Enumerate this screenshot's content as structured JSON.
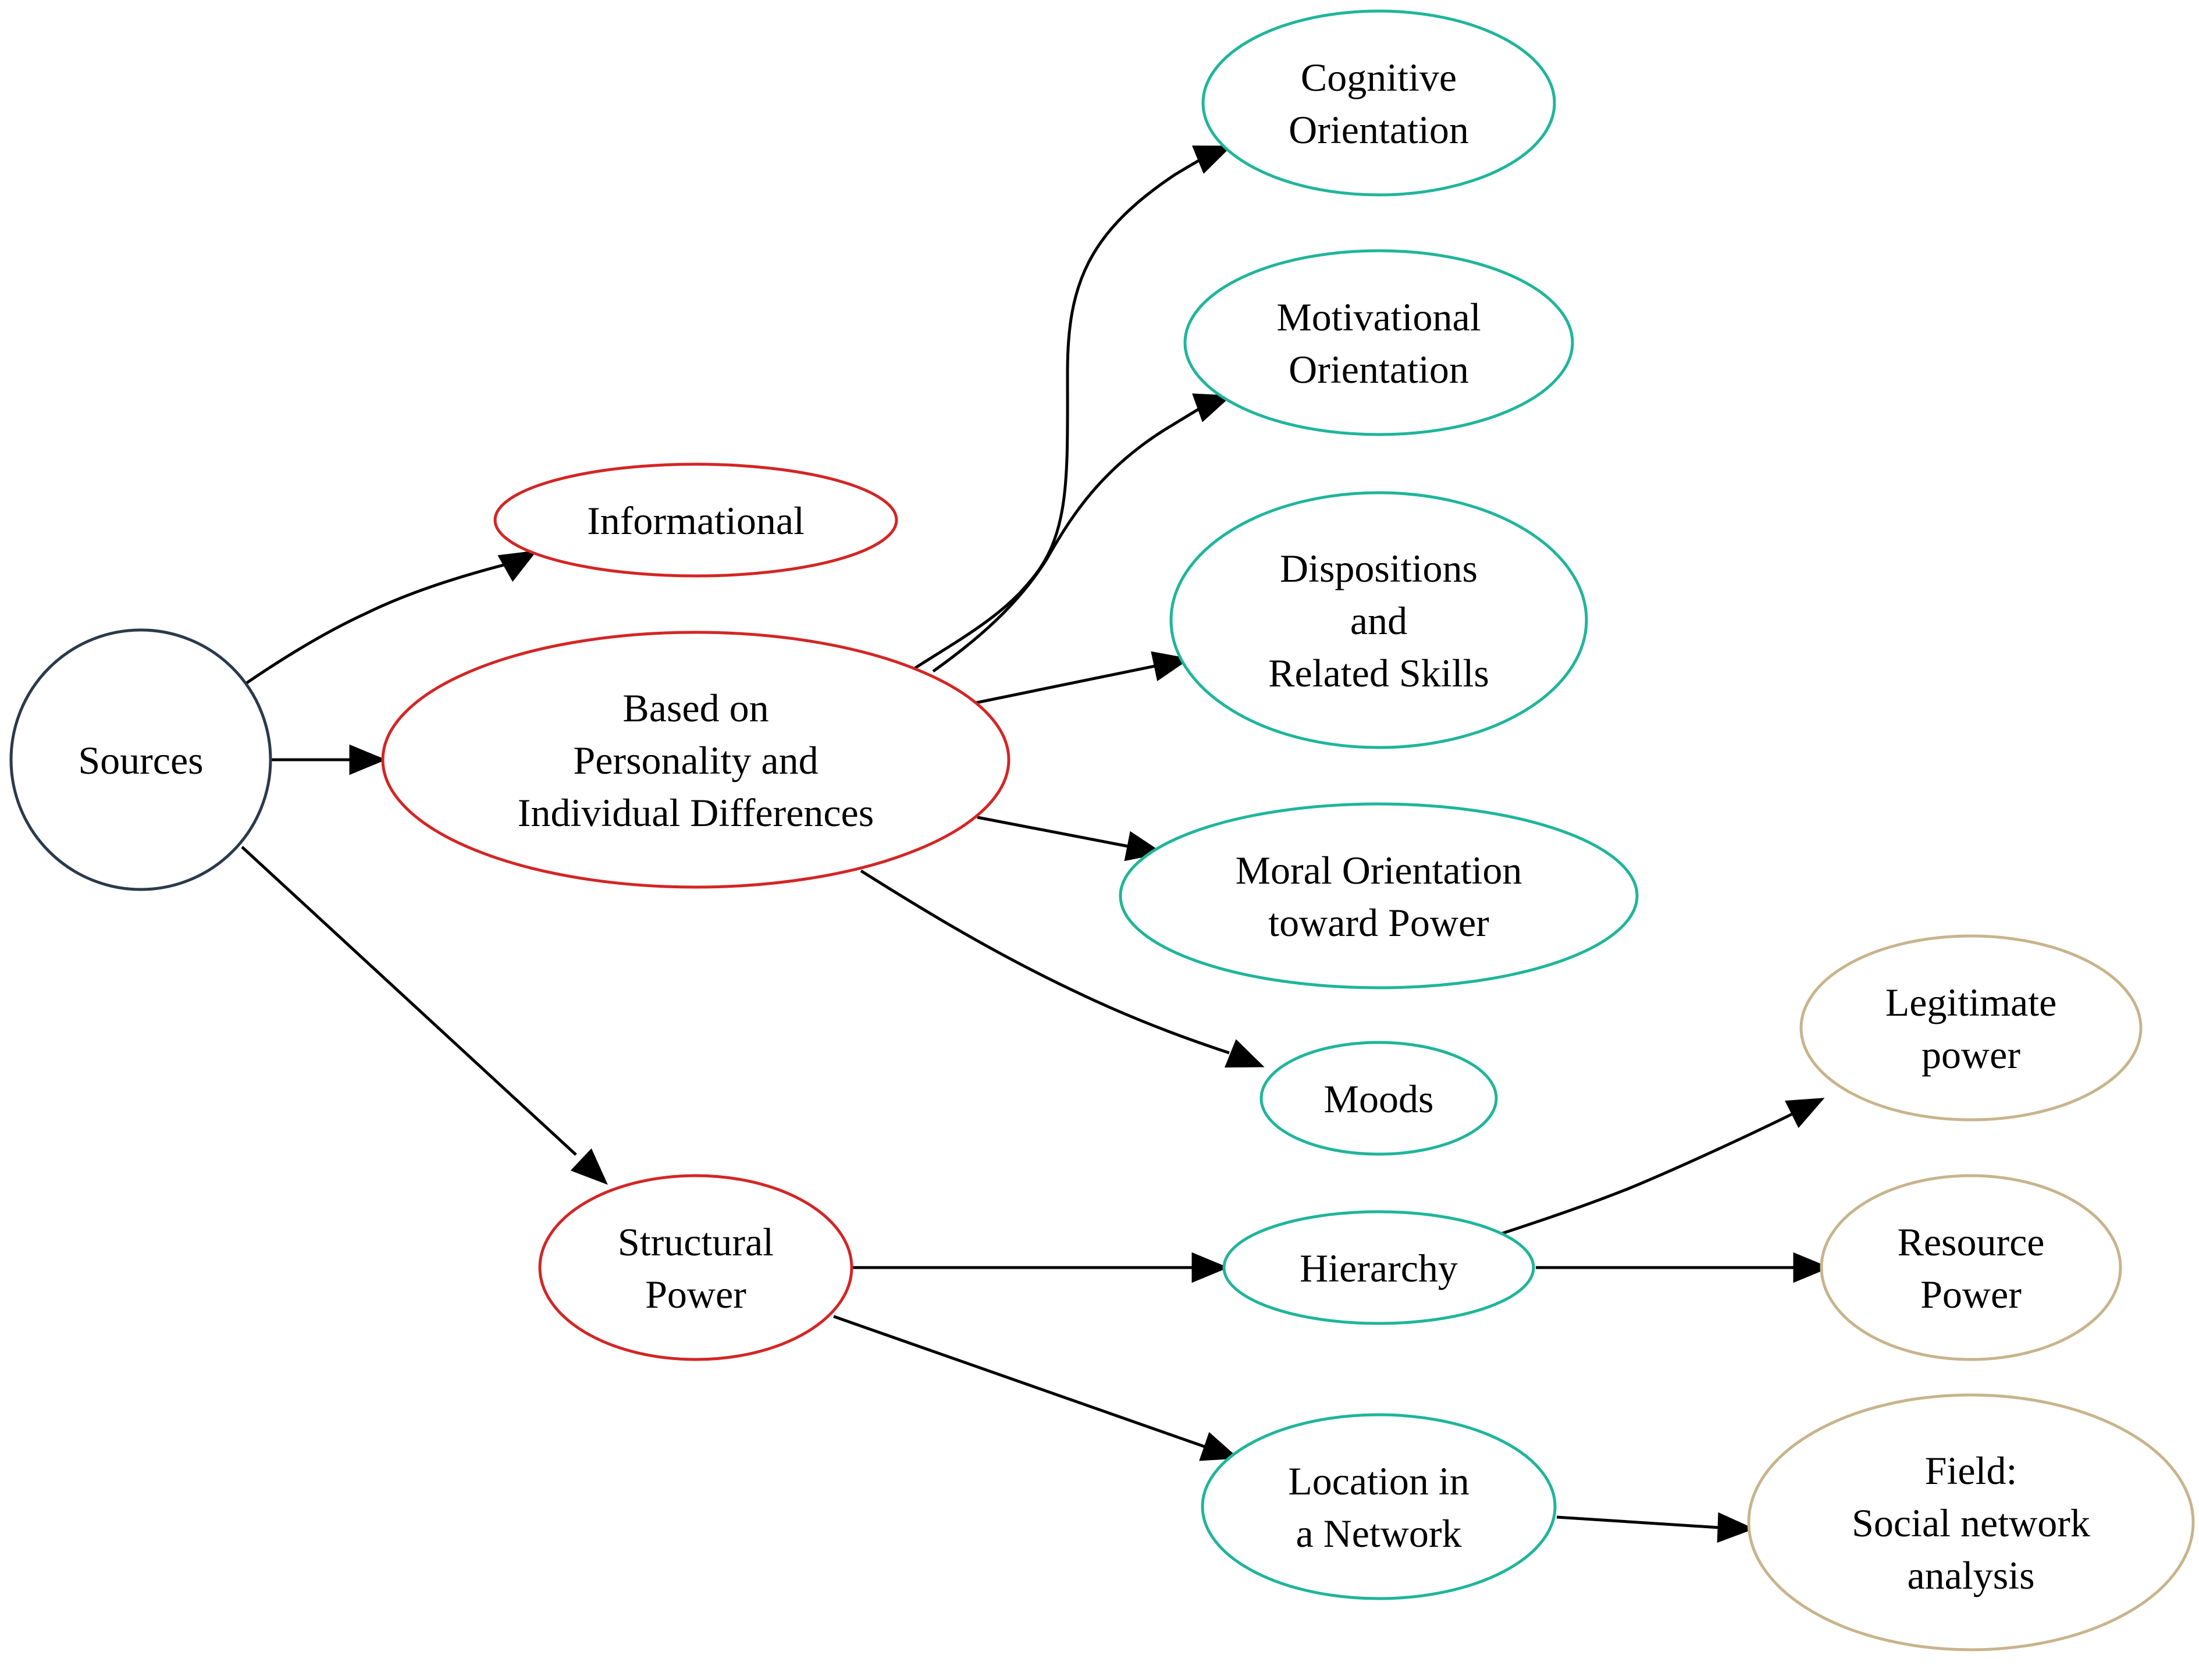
{
  "colors": {
    "root": "#2a3a4c",
    "category": "#d42525",
    "factor": "#1fb59b",
    "outcome": "#c8b48c",
    "edge": "#000000"
  },
  "nodes": {
    "sources": {
      "label": "Sources",
      "type": "root",
      "shape": "circle"
    },
    "informational": {
      "label": "Informational",
      "type": "category"
    },
    "personality": {
      "label": "Based on\nPersonality and\nIndividual Differences",
      "type": "category"
    },
    "structural": {
      "label": "Structural\nPower",
      "type": "category"
    },
    "cognitive": {
      "label": "Cognitive\nOrientation",
      "type": "factor"
    },
    "motivational": {
      "label": "Motivational\nOrientation",
      "type": "factor"
    },
    "dispositions": {
      "label": "Dispositions\nand\nRelated Skills",
      "type": "factor"
    },
    "moral": {
      "label": "Moral Orientation\ntoward Power",
      "type": "factor"
    },
    "moods": {
      "label": "Moods",
      "type": "factor"
    },
    "hierarchy": {
      "label": "Hierarchy",
      "type": "factor"
    },
    "network": {
      "label": "Location in\na Network",
      "type": "factor"
    },
    "legitimate": {
      "label": "Legitimate\npower",
      "type": "outcome"
    },
    "resource": {
      "label": "Resource\nPower",
      "type": "outcome"
    },
    "field": {
      "label": "Field:\nSocial network\nanalysis",
      "type": "outcome"
    }
  },
  "edges": [
    {
      "from": "sources",
      "to": "informational"
    },
    {
      "from": "sources",
      "to": "personality"
    },
    {
      "from": "sources",
      "to": "structural"
    },
    {
      "from": "personality",
      "to": "cognitive"
    },
    {
      "from": "personality",
      "to": "motivational"
    },
    {
      "from": "personality",
      "to": "dispositions"
    },
    {
      "from": "personality",
      "to": "moral"
    },
    {
      "from": "personality",
      "to": "moods"
    },
    {
      "from": "structural",
      "to": "hierarchy"
    },
    {
      "from": "structural",
      "to": "network"
    },
    {
      "from": "hierarchy",
      "to": "legitimate"
    },
    {
      "from": "hierarchy",
      "to": "resource"
    },
    {
      "from": "network",
      "to": "field"
    }
  ]
}
